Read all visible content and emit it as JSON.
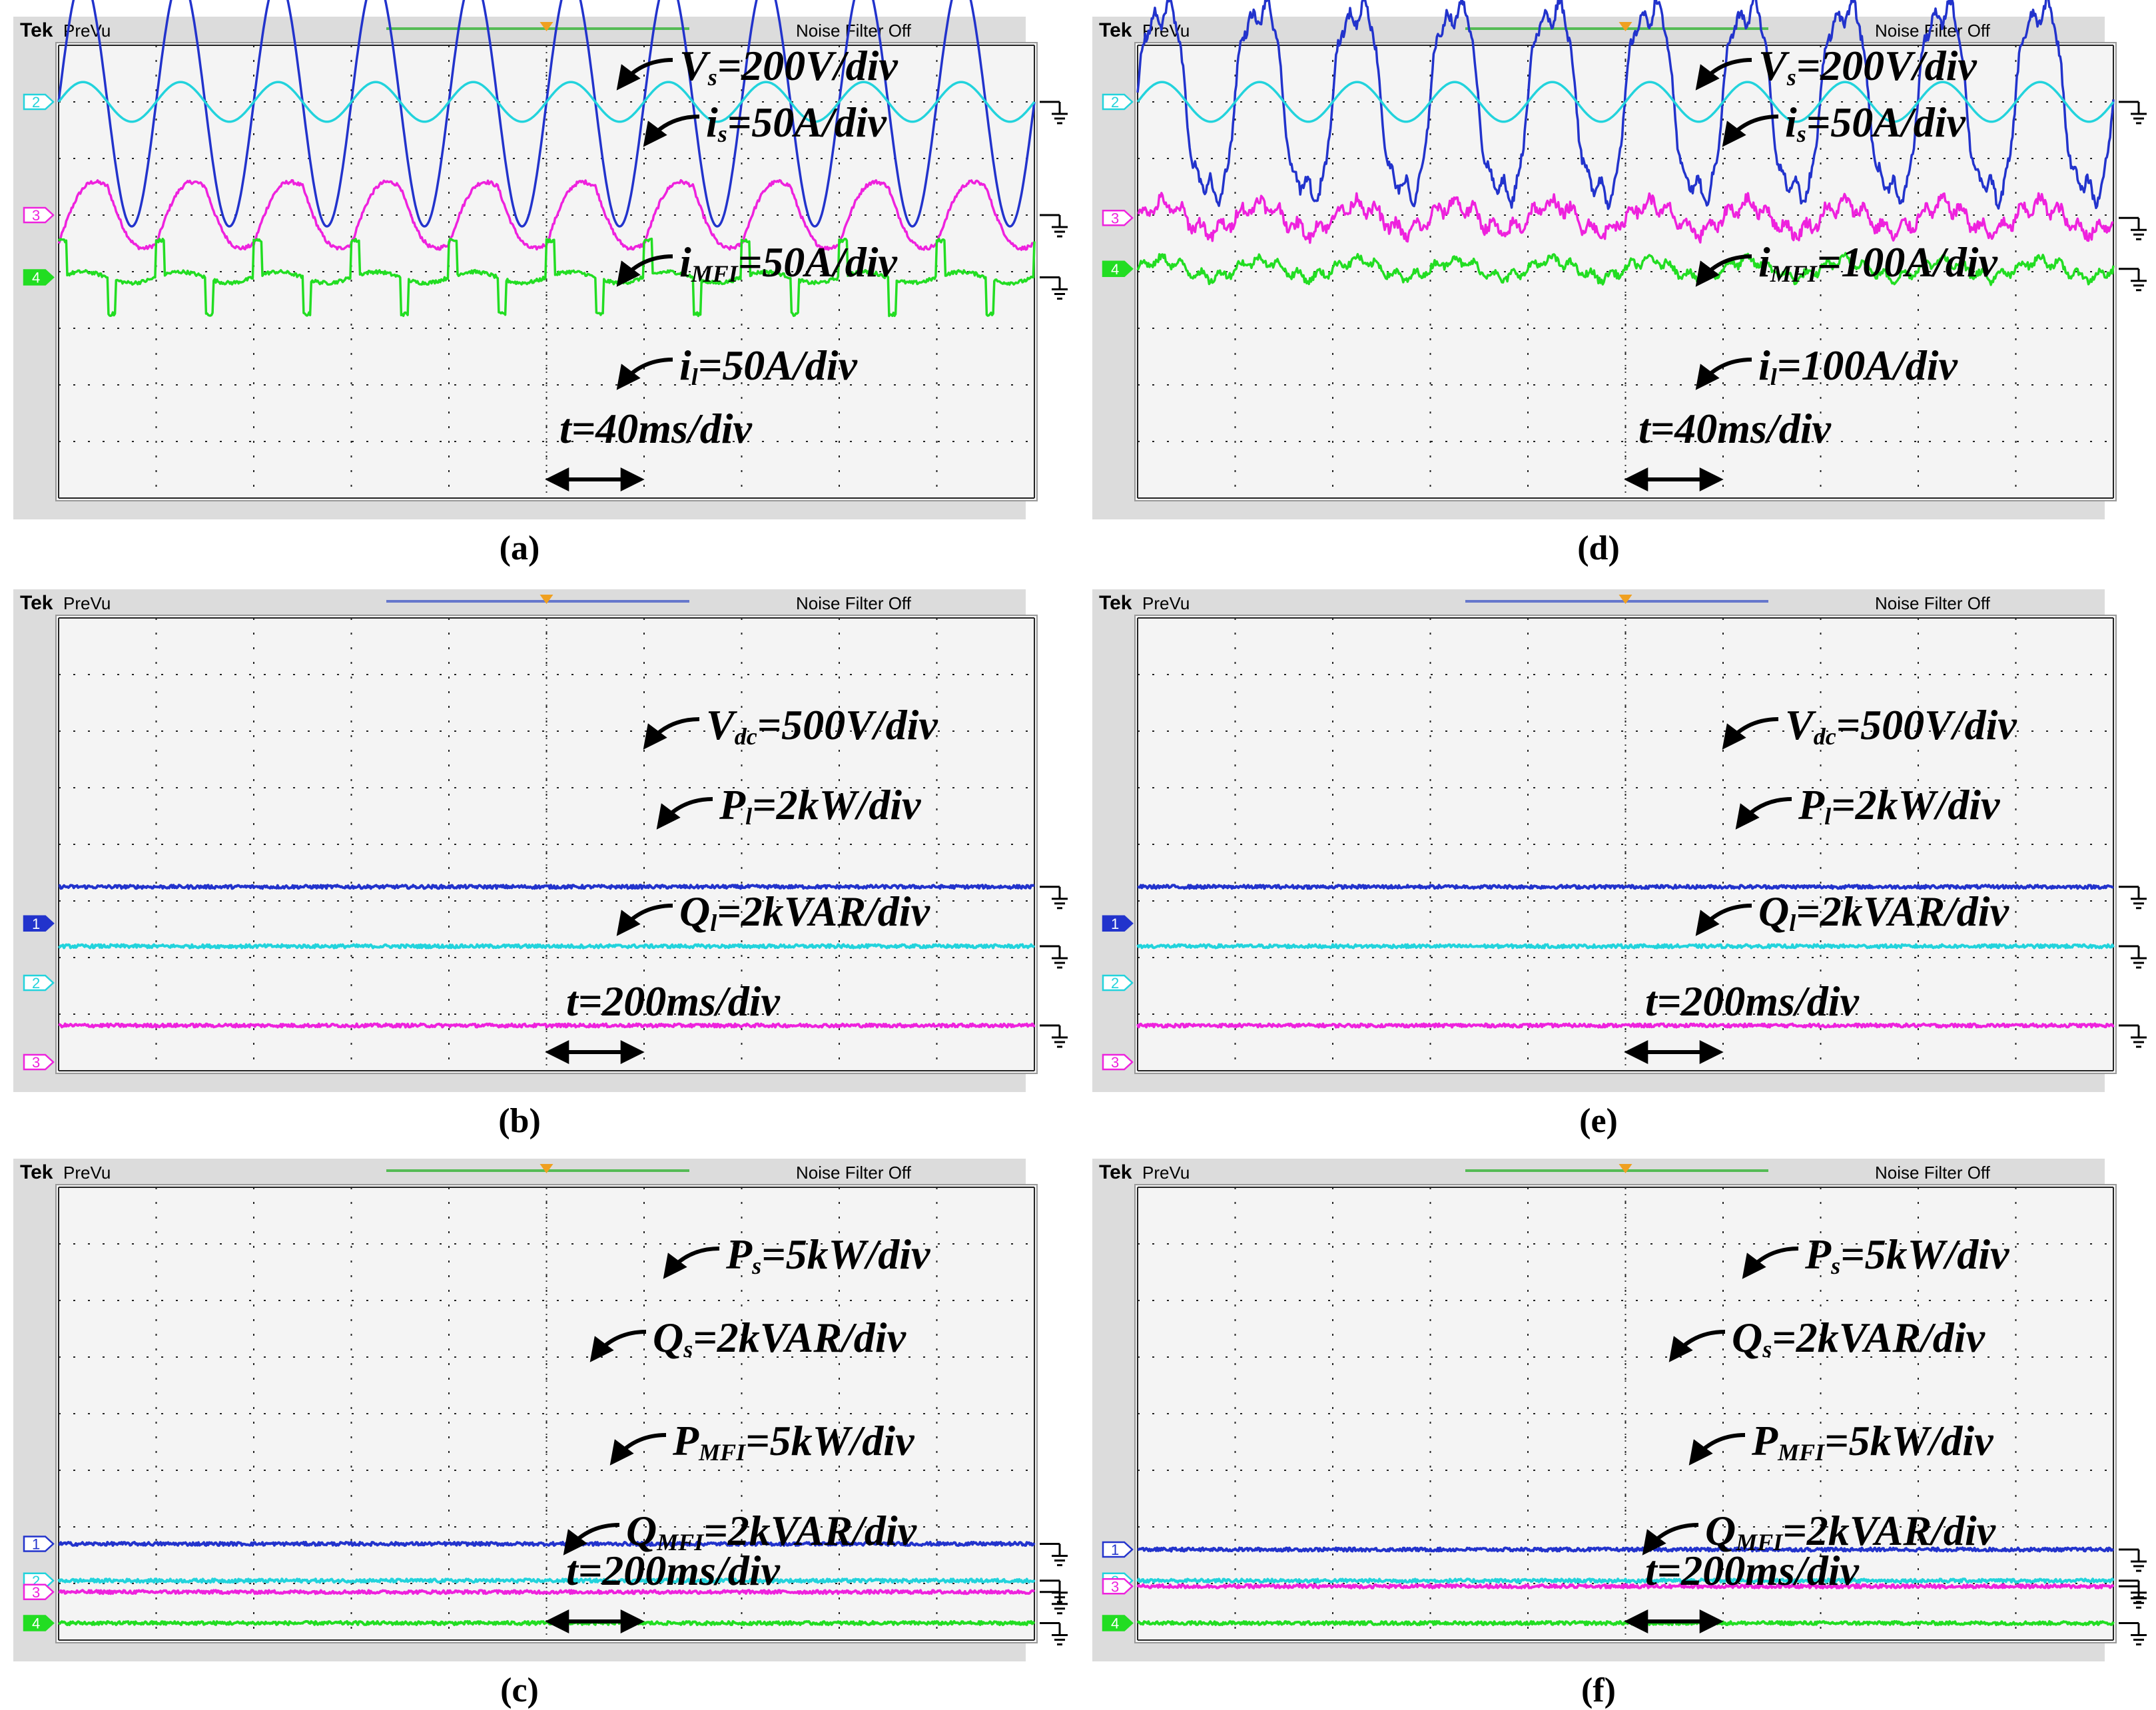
{
  "figure": {
    "header": {
      "brand": "Tek",
      "mode": "PreVu",
      "filter": "Noise Filter Off"
    },
    "colors": {
      "ch1": "#2233cc",
      "ch2": "#22d3dc",
      "ch3": "#ee22dd",
      "ch4": "#22dd22",
      "screen_bg": "#f4f4f4",
      "frame": "#dcdcdc",
      "grid": "#000000",
      "header_bar_green": "#55bb55",
      "header_bar_blue": "#6677cc",
      "trigger": "#f0a020"
    },
    "icons": [
      "ground-icon",
      "channel-marker-icon",
      "trigger-marker-icon",
      "double-arrow-icon",
      "pointer-arrow-icon"
    ]
  },
  "panels": [
    {
      "id": "a",
      "caption": "(a)",
      "header_bar_color": "green",
      "markers": [
        "2",
        "3",
        "4"
      ],
      "annotations": [
        {
          "sym": "V",
          "sub": "s",
          "val": "=200V/div"
        },
        {
          "sym": "i",
          "sub": "s",
          "val": "=50A/div"
        },
        {
          "sym": "i",
          "sub": "MFI",
          "val": "=50A/div"
        },
        {
          "sym": "i",
          "sub": "l",
          "val": "=50A/div"
        }
      ],
      "time": "t=40ms/div",
      "chart_data": {
        "type": "line",
        "x_divisions": 10,
        "y_divisions": 8,
        "series": [
          {
            "name": "Vs",
            "channel": 1,
            "kind": "sine",
            "cycles": 10,
            "amplitude_div": 2.2,
            "offset_div": 1.0,
            "scale": "200V/div"
          },
          {
            "name": "is",
            "channel": 2,
            "kind": "sine",
            "cycles": 10,
            "amplitude_div": 0.35,
            "offset_div": 1.0,
            "scale": "50A/div"
          },
          {
            "name": "iMFI",
            "channel": 3,
            "kind": "distorted",
            "cycles": 10,
            "amplitude_div": 0.85,
            "offset_div": 3.0,
            "scale": "50A/div"
          },
          {
            "name": "il",
            "channel": 4,
            "kind": "pulsed",
            "cycles": 10,
            "amplitude_div": 0.65,
            "offset_div": 4.1,
            "scale": "50A/div"
          }
        ]
      }
    },
    {
      "id": "b",
      "caption": "(b)",
      "header_bar_color": "blue",
      "markers": [
        "1",
        "2",
        "3"
      ],
      "annotations": [
        {
          "sym": "V",
          "sub": "dc",
          "val": "=500V/div"
        },
        {
          "sym": "P",
          "sub": "l",
          "val": "=2kW/div"
        },
        {
          "sym": "Q",
          "sub": "l",
          "val": "=2kVAR/div"
        }
      ],
      "time": "t=200ms/div",
      "chart_data": {
        "type": "line",
        "x_divisions": 10,
        "y_divisions": 8,
        "series": [
          {
            "name": "Vdc",
            "channel": 1,
            "kind": "flat",
            "level_div": 3.25,
            "scale": "500V/div"
          },
          {
            "name": "Pl",
            "channel": 2,
            "kind": "flat",
            "level_div": 2.2,
            "scale": "2kW/div"
          },
          {
            "name": "Ql",
            "channel": 3,
            "kind": "flat",
            "level_div": 0.8,
            "scale": "2kVAR/div"
          }
        ]
      }
    },
    {
      "id": "c",
      "caption": "(c)",
      "header_bar_color": "green",
      "markers": [
        "1",
        "2",
        "3",
        "4"
      ],
      "annotations": [
        {
          "sym": "P",
          "sub": "s",
          "val": "=5kW/div"
        },
        {
          "sym": "Q",
          "sub": "s",
          "val": "=2kVAR/div"
        },
        {
          "sym": "P",
          "sub": "MFI",
          "val": "=5kW/div"
        },
        {
          "sym": "Q",
          "sub": "MFI",
          "val": "=2kVAR/div"
        }
      ],
      "time": "t=200ms/div",
      "chart_data": {
        "type": "line",
        "x_divisions": 10,
        "y_divisions": 8,
        "series": [
          {
            "name": "Ps",
            "channel": 1,
            "kind": "flat",
            "level_div": 1.7,
            "scale": "5kW/div"
          },
          {
            "name": "Qs",
            "channel": 2,
            "kind": "flat",
            "level_div": 1.05,
            "scale": "2kVAR/div"
          },
          {
            "name": "PMFI",
            "channel": 3,
            "kind": "flat",
            "level_div": 0.85,
            "scale": "5kW/div"
          },
          {
            "name": "QMFI",
            "channel": 4,
            "kind": "flat",
            "level_div": 0.3,
            "scale": "2kVAR/div"
          }
        ]
      }
    },
    {
      "id": "d",
      "caption": "(d)",
      "header_bar_color": "green",
      "markers": [
        "2",
        "3",
        "4"
      ],
      "annotations": [
        {
          "sym": "V",
          "sub": "s",
          "val": "=200V/div"
        },
        {
          "sym": "i",
          "sub": "s",
          "val": "=50A/div"
        },
        {
          "sym": "i",
          "sub": "MFI",
          "val": "=100A/div"
        },
        {
          "sym": "i",
          "sub": "l",
          "val": "=100A/div"
        }
      ],
      "time": "t=40ms/div",
      "chart_data": {
        "type": "line",
        "x_divisions": 10,
        "y_divisions": 8,
        "series": [
          {
            "name": "Vs",
            "channel": 1,
            "kind": "sine_distorted",
            "cycles": 10,
            "amplitude_div": 1.8,
            "offset_div": 1.0,
            "scale": "200V/div"
          },
          {
            "name": "is",
            "channel": 2,
            "kind": "sine",
            "cycles": 10,
            "amplitude_div": 0.35,
            "offset_div": 1.0,
            "scale": "50A/div"
          },
          {
            "name": "iMFI",
            "channel": 3,
            "kind": "noisy",
            "cycles": 10,
            "amplitude_div": 0.4,
            "offset_div": 3.05,
            "scale": "100A/div"
          },
          {
            "name": "il",
            "channel": 4,
            "kind": "noisy",
            "cycles": 10,
            "amplitude_div": 0.25,
            "offset_div": 3.95,
            "scale": "100A/div"
          }
        ]
      }
    },
    {
      "id": "e",
      "caption": "(e)",
      "header_bar_color": "blue",
      "markers": [
        "1",
        "2",
        "3"
      ],
      "annotations": [
        {
          "sym": "V",
          "sub": "dc",
          "val": "=500V/div"
        },
        {
          "sym": "P",
          "sub": "l",
          "val": "=2kW/div"
        },
        {
          "sym": "Q",
          "sub": "l",
          "val": "=2kVAR/div"
        }
      ],
      "time": "t=200ms/div",
      "chart_data": {
        "type": "line",
        "x_divisions": 10,
        "y_divisions": 8,
        "series": [
          {
            "name": "Vdc",
            "channel": 1,
            "kind": "flat",
            "level_div": 3.25,
            "scale": "500V/div"
          },
          {
            "name": "Pl",
            "channel": 2,
            "kind": "flat",
            "level_div": 2.2,
            "scale": "2kW/div"
          },
          {
            "name": "Ql",
            "channel": 3,
            "kind": "flat",
            "level_div": 0.8,
            "scale": "2kVAR/div"
          }
        ]
      }
    },
    {
      "id": "f",
      "caption": "(f)",
      "header_bar_color": "green",
      "markers": [
        "1",
        "2",
        "3",
        "4"
      ],
      "annotations": [
        {
          "sym": "P",
          "sub": "s",
          "val": "=5kW/div"
        },
        {
          "sym": "Q",
          "sub": "s",
          "val": "=2kVAR/div"
        },
        {
          "sym": "P",
          "sub": "MFI",
          "val": "=5kW/div"
        },
        {
          "sym": "Q",
          "sub": "MFI",
          "val": "=2kVAR/div"
        }
      ],
      "time": "t=200ms/div",
      "chart_data": {
        "type": "line",
        "x_divisions": 10,
        "y_divisions": 8,
        "series": [
          {
            "name": "Ps",
            "channel": 1,
            "kind": "flat",
            "level_div": 1.6,
            "scale": "5kW/div"
          },
          {
            "name": "Qs",
            "channel": 2,
            "kind": "flat",
            "level_div": 1.05,
            "scale": "2kVAR/div"
          },
          {
            "name": "PMFI",
            "channel": 3,
            "kind": "flat",
            "level_div": 0.95,
            "scale": "5kW/div"
          },
          {
            "name": "QMFI",
            "channel": 4,
            "kind": "flat",
            "level_div": 0.3,
            "scale": "2kVAR/div"
          }
        ]
      }
    }
  ]
}
